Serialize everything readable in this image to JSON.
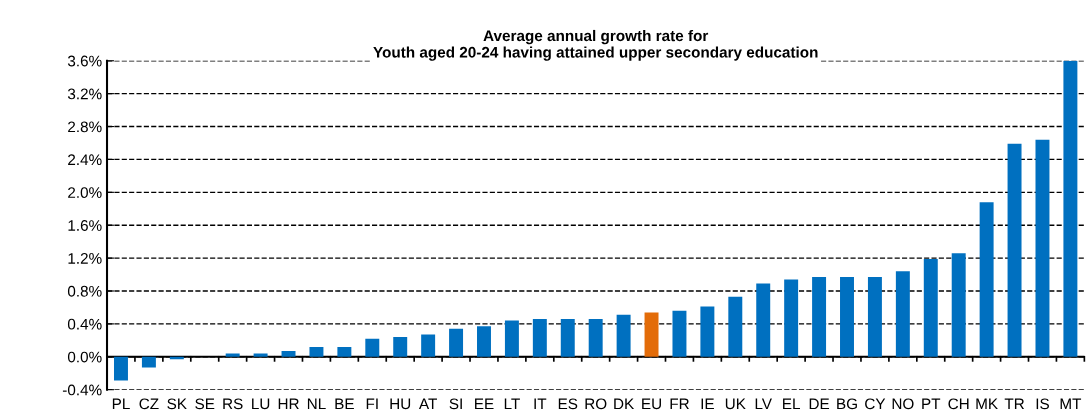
{
  "chart_data": {
    "type": "bar",
    "title": "Average annual growth rate for\nYouth aged 20-24 having attained upper secondary education",
    "categories": [
      "PL",
      "CZ",
      "SK",
      "SE",
      "RS",
      "LU",
      "HR",
      "NL",
      "BE",
      "FI",
      "HU",
      "AT",
      "SI",
      "EE",
      "LT",
      "IT",
      "ES",
      "RO",
      "DK",
      "EU",
      "FR",
      "IE",
      "UK",
      "LV",
      "EL",
      "DE",
      "BG",
      "CY",
      "NO",
      "PT",
      "CH",
      "MK",
      "TR",
      "IS",
      "MT"
    ],
    "values": [
      -0.29,
      -0.13,
      -0.03,
      0,
      0.04,
      0.04,
      0.07,
      0.12,
      0.12,
      0.22,
      0.24,
      0.27,
      0.34,
      0.37,
      0.44,
      0.46,
      0.46,
      0.46,
      0.51,
      0.54,
      0.56,
      0.61,
      0.73,
      0.89,
      0.94,
      0.97,
      0.97,
      0.97,
      1.04,
      1.19,
      1.26,
      1.88,
      2.59,
      2.64,
      3.6
    ],
    "colors": [
      "#0070c0",
      "#0070c0",
      "#0070c0",
      "#0070c0",
      "#0070c0",
      "#0070c0",
      "#0070c0",
      "#0070c0",
      "#0070c0",
      "#0070c0",
      "#0070c0",
      "#0070c0",
      "#0070c0",
      "#0070c0",
      "#0070c0",
      "#0070c0",
      "#0070c0",
      "#0070c0",
      "#0070c0",
      "#e36c09",
      "#0070c0",
      "#0070c0",
      "#0070c0",
      "#0070c0",
      "#0070c0",
      "#0070c0",
      "#0070c0",
      "#0070c0",
      "#0070c0",
      "#0070c0",
      "#0070c0",
      "#0070c0",
      "#0070c0",
      "#0070c0",
      "#0070c0"
    ],
    "ylim": [
      -0.4,
      3.6
    ],
    "yticks": [
      {
        "value": -0.4,
        "label": "-0.4%"
      },
      {
        "value": 0,
        "label": "0.0%"
      },
      {
        "value": 0.4,
        "label": "0.4%"
      },
      {
        "value": 0.8,
        "label": "0.8%"
      },
      {
        "value": 1.2,
        "label": "1.2%"
      },
      {
        "value": 1.6,
        "label": "1.6%"
      },
      {
        "value": 2.0,
        "label": "2.0%"
      },
      {
        "value": 2.4,
        "label": "2.4%"
      },
      {
        "value": 2.8,
        "label": "2.8%"
      },
      {
        "value": 3.2,
        "label": "3.2%"
      },
      {
        "value": 3.6,
        "label": "3.6%"
      }
    ],
    "grid": "y"
  }
}
